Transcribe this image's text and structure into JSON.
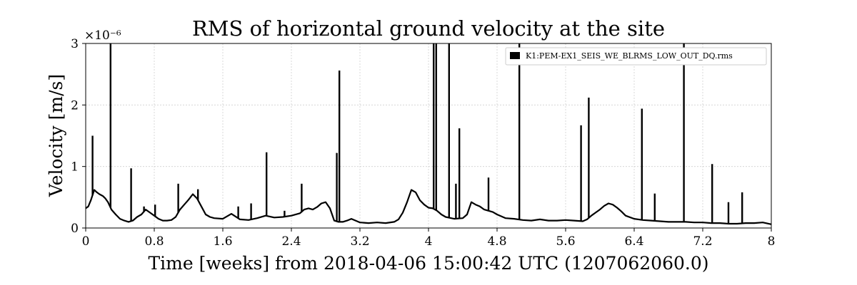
{
  "chart_data": {
    "type": "line",
    "title": "RMS of horizontal ground velocity at the site",
    "xlabel": "Time [weeks] from 2018-04-06 15:00:42 UTC (1207062060.0)",
    "ylabel": "Velocity [m/s]",
    "y_offset_label": "×10⁻⁶",
    "xlim": [
      0,
      8
    ],
    "ylim": [
      0,
      3
    ],
    "x_ticks": [
      "0",
      "0.8",
      "1.6",
      "2.4",
      "3.2",
      "4",
      "4.8",
      "5.6",
      "6.4",
      "7.2",
      "8"
    ],
    "x_tick_values": [
      0,
      0.8,
      1.6,
      2.4,
      3.2,
      4,
      4.8,
      5.6,
      6.4,
      7.2,
      8
    ],
    "y_ticks": [
      "0",
      "1",
      "2",
      "3"
    ],
    "y_tick_values": [
      0,
      1,
      2,
      3
    ],
    "grid": true,
    "legend_position": "top-right",
    "series": [
      {
        "name": "K1:PEM-EX1_SEIS_WE_BLRMS_LOW_OUT_DQ.rms",
        "color": "#000000",
        "x": [
          0,
          0.03,
          0.06,
          0.1,
          0.13,
          0.16,
          0.2,
          0.23,
          0.26,
          0.3,
          0.35,
          0.4,
          0.45,
          0.5,
          0.55,
          0.6,
          0.65,
          0.7,
          0.75,
          0.8,
          0.85,
          0.9,
          0.95,
          1.0,
          1.05,
          1.1,
          1.15,
          1.2,
          1.25,
          1.3,
          1.35,
          1.4,
          1.45,
          1.5,
          1.6,
          1.7,
          1.8,
          1.9,
          2.0,
          2.1,
          2.2,
          2.3,
          2.4,
          2.5,
          2.55,
          2.6,
          2.65,
          2.7,
          2.75,
          2.8,
          2.85,
          2.9,
          2.95,
          3.0,
          3.05,
          3.1,
          3.2,
          3.3,
          3.4,
          3.5,
          3.6,
          3.65,
          3.7,
          3.75,
          3.8,
          3.85,
          3.9,
          3.95,
          4.0,
          4.05,
          4.1,
          4.15,
          4.2,
          4.3,
          4.4,
          4.45,
          4.5,
          4.55,
          4.6,
          4.65,
          4.7,
          4.75,
          4.8,
          4.9,
          5.0,
          5.1,
          5.2,
          5.3,
          5.4,
          5.5,
          5.6,
          5.7,
          5.8,
          5.85,
          5.9,
          5.95,
          6.0,
          6.05,
          6.1,
          6.15,
          6.2,
          6.25,
          6.3,
          6.4,
          6.5,
          6.6,
          6.7,
          6.8,
          6.9,
          7.0,
          7.1,
          7.2,
          7.3,
          7.4,
          7.5,
          7.6,
          7.7,
          7.8,
          7.9,
          8.0
        ],
        "values": [
          0.32,
          0.35,
          0.45,
          0.62,
          0.58,
          0.55,
          0.52,
          0.48,
          0.42,
          0.3,
          0.22,
          0.15,
          0.12,
          0.1,
          0.12,
          0.18,
          0.22,
          0.3,
          0.25,
          0.2,
          0.15,
          0.12,
          0.12,
          0.13,
          0.18,
          0.3,
          0.38,
          0.46,
          0.55,
          0.48,
          0.35,
          0.22,
          0.18,
          0.16,
          0.15,
          0.23,
          0.14,
          0.13,
          0.16,
          0.2,
          0.17,
          0.18,
          0.2,
          0.24,
          0.3,
          0.32,
          0.3,
          0.34,
          0.4,
          0.42,
          0.32,
          0.12,
          0.1,
          0.1,
          0.12,
          0.15,
          0.09,
          0.08,
          0.09,
          0.08,
          0.1,
          0.14,
          0.25,
          0.42,
          0.62,
          0.58,
          0.45,
          0.38,
          0.33,
          0.32,
          0.28,
          0.22,
          0.18,
          0.15,
          0.16,
          0.22,
          0.42,
          0.38,
          0.35,
          0.3,
          0.28,
          0.26,
          0.22,
          0.16,
          0.15,
          0.13,
          0.12,
          0.14,
          0.12,
          0.12,
          0.13,
          0.12,
          0.11,
          0.14,
          0.2,
          0.25,
          0.3,
          0.36,
          0.4,
          0.38,
          0.33,
          0.27,
          0.2,
          0.15,
          0.13,
          0.12,
          0.11,
          0.1,
          0.1,
          0.1,
          0.09,
          0.09,
          0.08,
          0.08,
          0.07,
          0.07,
          0.08,
          0.08,
          0.09,
          0.06
        ],
        "spikes": [
          {
            "x": 0.08,
            "y": 1.5
          },
          {
            "x": 0.29,
            "y": 3.0
          },
          {
            "x": 0.53,
            "y": 0.97
          },
          {
            "x": 0.68,
            "y": 0.35
          },
          {
            "x": 0.81,
            "y": 0.38
          },
          {
            "x": 1.08,
            "y": 0.72
          },
          {
            "x": 1.31,
            "y": 0.63
          },
          {
            "x": 1.78,
            "y": 0.35
          },
          {
            "x": 1.93,
            "y": 0.4
          },
          {
            "x": 2.11,
            "y": 1.23
          },
          {
            "x": 2.32,
            "y": 0.28
          },
          {
            "x": 2.52,
            "y": 0.72
          },
          {
            "x": 2.93,
            "y": 1.22
          },
          {
            "x": 2.96,
            "y": 2.56
          },
          {
            "x": 4.06,
            "y": 3.0
          },
          {
            "x": 4.09,
            "y": 3.0
          },
          {
            "x": 4.24,
            "y": 3.0
          },
          {
            "x": 4.32,
            "y": 0.72
          },
          {
            "x": 4.36,
            "y": 1.62
          },
          {
            "x": 4.7,
            "y": 0.82
          },
          {
            "x": 5.06,
            "y": 3.0
          },
          {
            "x": 5.78,
            "y": 1.67
          },
          {
            "x": 5.87,
            "y": 2.12
          },
          {
            "x": 6.49,
            "y": 1.94
          },
          {
            "x": 6.64,
            "y": 0.56
          },
          {
            "x": 6.98,
            "y": 3.0
          },
          {
            "x": 7.31,
            "y": 1.04
          },
          {
            "x": 7.5,
            "y": 0.42
          },
          {
            "x": 7.66,
            "y": 0.58
          }
        ]
      }
    ]
  }
}
